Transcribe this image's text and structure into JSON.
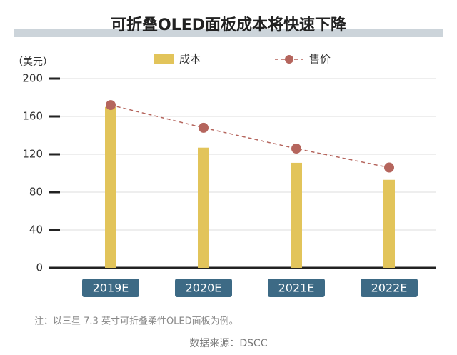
{
  "chart_data": {
    "type": "bar",
    "title": "可折叠OLED面板成本将快速下降",
    "y_label": "（美元）",
    "categories": [
      "2019E",
      "2020E",
      "2021E",
      "2022E"
    ],
    "series": [
      {
        "name": "成本",
        "type": "bar",
        "color": "#e2c45a",
        "values": [
          170,
          127,
          111,
          93
        ]
      },
      {
        "name": "售价",
        "type": "line",
        "color": "#b5655d",
        "values": [
          172,
          148,
          126,
          106
        ]
      }
    ],
    "ylim": [
      0,
      200
    ],
    "yticks": [
      0,
      40,
      80,
      120,
      160,
      200
    ],
    "grid": true,
    "note": "注：以三星 7.3 英寸可折叠柔性OLED面板为例。",
    "source": "数据来源：DSCC"
  }
}
